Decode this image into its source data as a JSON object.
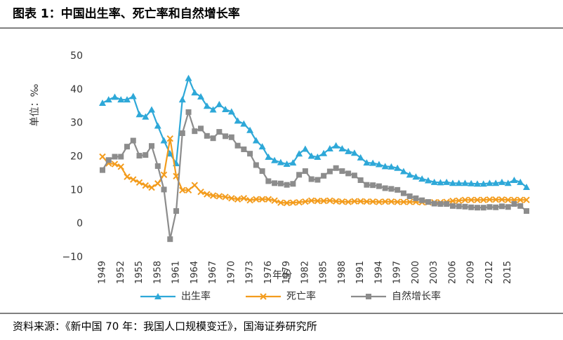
{
  "chart_data": {
    "type": "line",
    "title": "图表 1：中国出生率、死亡率和自然增长率",
    "y_label": "单位：‰",
    "x_label": "年份",
    "source": "资料来源：《新中国 70 年：我国人口规模变迁》，国海证券研究所",
    "x": [
      1949,
      1950,
      1951,
      1952,
      1953,
      1954,
      1955,
      1956,
      1957,
      1958,
      1959,
      1960,
      1961,
      1962,
      1963,
      1964,
      1965,
      1966,
      1967,
      1968,
      1969,
      1970,
      1971,
      1972,
      1973,
      1974,
      1975,
      1976,
      1977,
      1978,
      1979,
      1980,
      1981,
      1982,
      1983,
      1984,
      1985,
      1986,
      1987,
      1988,
      1989,
      1990,
      1991,
      1992,
      1993,
      1994,
      1995,
      1996,
      1997,
      1998,
      1999,
      2000,
      2001,
      2002,
      2003,
      2004,
      2005,
      2006,
      2007,
      2008,
      2009,
      2010,
      2011,
      2012,
      2013,
      2014,
      2015,
      2016,
      2017,
      2018
    ],
    "series": [
      {
        "name": "出生率",
        "color": "#2ea8d8",
        "marker": "triangle",
        "values": [
          36.0,
          37.0,
          37.8,
          37.0,
          37.0,
          38.0,
          32.6,
          31.9,
          34.0,
          29.2,
          24.8,
          20.9,
          18.0,
          37.0,
          43.4,
          39.1,
          37.9,
          35.1,
          34.0,
          35.6,
          34.1,
          33.4,
          30.7,
          29.8,
          27.9,
          24.8,
          23.0,
          19.9,
          18.9,
          18.3,
          17.8,
          18.2,
          20.9,
          22.3,
          20.2,
          19.9,
          21.0,
          22.4,
          23.3,
          22.4,
          21.6,
          21.1,
          19.7,
          18.2,
          18.1,
          17.7,
          17.1,
          17.0,
          16.6,
          15.6,
          14.6,
          14.0,
          13.4,
          12.9,
          12.4,
          12.3,
          12.4,
          12.1,
          12.1,
          12.1,
          12.0,
          11.9,
          11.9,
          12.1,
          12.1,
          12.4,
          12.1,
          13.0,
          12.4,
          10.9
        ]
      },
      {
        "name": "死亡率",
        "color": "#f39c1d",
        "marker": "x",
        "values": [
          20.0,
          18.0,
          17.8,
          17.0,
          14.0,
          13.2,
          12.3,
          11.4,
          10.8,
          12.0,
          14.6,
          25.4,
          14.2,
          10.0,
          10.0,
          11.5,
          9.5,
          8.8,
          8.4,
          8.2,
          8.0,
          7.6,
          7.3,
          7.6,
          7.0,
          7.3,
          7.3,
          7.3,
          6.9,
          6.3,
          6.2,
          6.3,
          6.4,
          6.6,
          6.9,
          6.8,
          6.8,
          6.9,
          6.7,
          6.6,
          6.5,
          6.7,
          6.7,
          6.6,
          6.6,
          6.5,
          6.6,
          6.6,
          6.5,
          6.5,
          6.5,
          6.5,
          6.4,
          6.4,
          6.4,
          6.4,
          6.5,
          6.8,
          6.9,
          7.1,
          7.1,
          7.1,
          7.1,
          7.2,
          7.2,
          7.2,
          7.1,
          7.1,
          7.1,
          7.1
        ]
      },
      {
        "name": "自然增长率",
        "color": "#8c8c8c",
        "marker": "square",
        "values": [
          16.0,
          19.0,
          20.0,
          20.0,
          23.0,
          24.8,
          20.3,
          20.5,
          23.2,
          17.2,
          10.2,
          -4.6,
          3.8,
          27.0,
          33.3,
          27.6,
          28.4,
          26.2,
          25.5,
          27.4,
          26.1,
          25.8,
          23.3,
          22.2,
          20.9,
          17.5,
          15.7,
          12.7,
          12.1,
          12.0,
          11.6,
          11.9,
          14.6,
          15.7,
          13.3,
          13.1,
          14.3,
          15.6,
          16.6,
          15.7,
          15.0,
          14.4,
          13.0,
          11.6,
          11.5,
          11.2,
          10.6,
          10.4,
          10.1,
          9.1,
          8.2,
          7.6,
          7.0,
          6.5,
          6.0,
          5.9,
          5.9,
          5.3,
          5.2,
          5.1,
          4.9,
          4.8,
          4.8,
          5.0,
          4.9,
          5.2,
          5.0,
          5.9,
          5.3,
          3.8
        ]
      }
    ],
    "xlim": [
      1949,
      2018
    ],
    "xticks": [
      1949,
      1952,
      1955,
      1958,
      1961,
      1964,
      1967,
      1970,
      1973,
      1976,
      1979,
      1982,
      1985,
      1988,
      1991,
      1994,
      1997,
      2000,
      2003,
      2006,
      2009,
      2012,
      2015
    ],
    "ylim": [
      -10,
      50
    ],
    "yticks": [
      {
        "value": -10,
        "label": "−10"
      },
      0,
      10,
      20,
      30,
      40,
      50
    ],
    "grid": false
  }
}
